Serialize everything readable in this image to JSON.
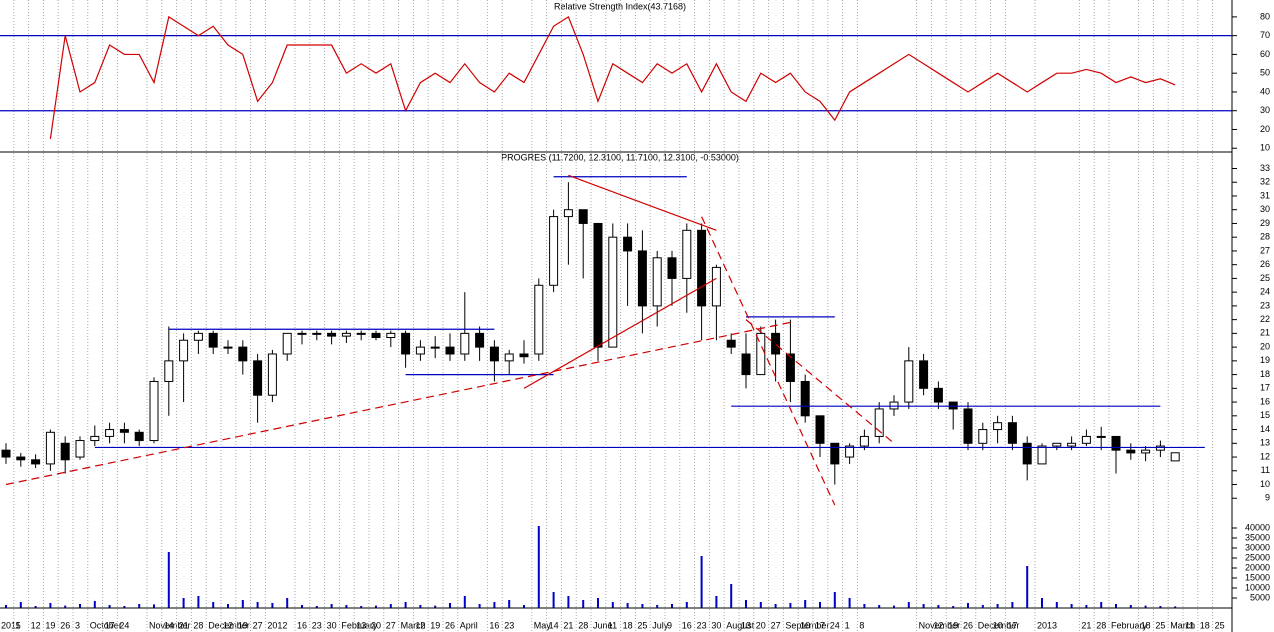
{
  "chart_data": [
    {
      "type": "line",
      "title": "Relative Strength Index(43.7168)",
      "color": "#d00000",
      "values": [
        null,
        null,
        null,
        15,
        70,
        40,
        45,
        65,
        60,
        60,
        45,
        80,
        75,
        70,
        75,
        65,
        60,
        35,
        45,
        65,
        65,
        65,
        65,
        50,
        55,
        50,
        55,
        30,
        45,
        50,
        45,
        55,
        45,
        40,
        50,
        45,
        60,
        75,
        80,
        60,
        35,
        55,
        50,
        45,
        55,
        50,
        55,
        40,
        55,
        40,
        35,
        50,
        45,
        50,
        40,
        35,
        25,
        40,
        45,
        50,
        55,
        60,
        55,
        50,
        45,
        40,
        45,
        50,
        45,
        40,
        45,
        50,
        50,
        52,
        50,
        45,
        48,
        45,
        47,
        43.7168,
        null,
        null,
        null
      ],
      "ylim": [
        8,
        89
      ],
      "yticks": [
        10,
        20,
        30,
        40,
        50,
        60,
        70,
        80
      ],
      "levels": [
        30,
        70
      ],
      "level_color": "#0000c0"
    },
    {
      "type": "candlestick",
      "title": "PROGRES (11.7200, 12.3100, 11.7100, 12.3100, -0.53000)",
      "up_color": "#ffffff",
      "down_color": "#000000",
      "open": [
        12.5,
        12,
        11.8,
        11.5,
        13,
        12,
        13.2,
        13.5,
        14,
        13.8,
        13.2,
        17.5,
        19,
        20.5,
        21,
        20,
        20,
        19,
        16.5,
        19.5,
        21,
        21,
        21,
        20.8,
        21,
        21,
        20.7,
        21,
        19.5,
        20,
        20,
        19.5,
        21,
        20,
        19,
        19.5,
        19.5,
        24.5,
        29.5,
        30,
        29,
        20,
        28,
        27,
        23,
        26.5,
        25,
        28.5,
        23,
        20.5,
        19.5,
        18,
        21,
        19.5,
        17.5,
        15,
        13,
        12,
        12.8,
        13.5,
        15.5,
        16,
        19,
        17,
        16,
        15.5,
        13,
        14,
        14.5,
        13,
        11.5,
        12.8,
        12.8,
        13,
        13.5,
        13.5,
        12.5,
        12.3,
        12.5,
        11.72,
        null,
        null,
        null
      ],
      "high": [
        13,
        12.3,
        12.2,
        14,
        13.5,
        13.5,
        14.3,
        14.5,
        14.5,
        14,
        17.8,
        21.5,
        21,
        21.2,
        21.2,
        20.5,
        20.5,
        19.5,
        19.8,
        21,
        21.2,
        21.2,
        21.2,
        21.2,
        21.2,
        21.2,
        21.2,
        21.2,
        20.5,
        20.8,
        21,
        24,
        21.5,
        20.5,
        19.8,
        20.5,
        25,
        30,
        32,
        30,
        29,
        29,
        29,
        28.5,
        27,
        27,
        29,
        29,
        26,
        21,
        21,
        21.5,
        22,
        22,
        18,
        15,
        13,
        13,
        14,
        16,
        16.5,
        20,
        19.5,
        17.5,
        16,
        16,
        14.5,
        15,
        15,
        13.5,
        13,
        13,
        13.5,
        14,
        14.2,
        13.5,
        13,
        12.8,
        13.2,
        12.31,
        null,
        null,
        null
      ],
      "low": [
        11.5,
        11.3,
        11.2,
        11,
        10.8,
        11.8,
        12.8,
        13,
        13,
        12.8,
        13,
        15,
        16,
        19.5,
        19.5,
        19.5,
        18,
        14.5,
        16,
        19,
        20.2,
        20.5,
        20.2,
        20.3,
        20.5,
        20.5,
        20,
        18.5,
        19,
        19.2,
        19,
        19,
        19,
        17.5,
        18,
        18.8,
        19,
        24,
        26,
        25,
        19,
        20,
        23,
        21,
        21.5,
        23,
        22.5,
        20.5,
        20.5,
        19.5,
        17,
        18,
        17.5,
        16,
        14.5,
        12,
        10,
        11.5,
        12.5,
        13,
        15,
        15.5,
        16.5,
        15.5,
        14,
        12.5,
        12.5,
        13,
        12.5,
        10.3,
        11.5,
        12.5,
        12.5,
        12.8,
        12.5,
        10.8,
        11.8,
        11.7,
        12,
        11.71,
        null,
        null,
        null
      ],
      "close": [
        12,
        11.8,
        11.5,
        13.8,
        11.8,
        13.2,
        13.5,
        14,
        13.8,
        13.2,
        17.5,
        19,
        20.5,
        21,
        20,
        20,
        19,
        16.5,
        19.5,
        21,
        21,
        21,
        20.8,
        21,
        21,
        20.7,
        21,
        19.5,
        20,
        20,
        19.5,
        21,
        20,
        19,
        19.5,
        19.3,
        24.5,
        29.5,
        30,
        29,
        20,
        28,
        27,
        23,
        26.5,
        25,
        28.5,
        23,
        25.8,
        20,
        18,
        21,
        19.5,
        17.5,
        15,
        13,
        11.5,
        12.8,
        13.5,
        15.5,
        16,
        19,
        17,
        16,
        15.5,
        13,
        14,
        14.5,
        13,
        11.5,
        12.8,
        13,
        13,
        13.5,
        13.5,
        12.5,
        12.3,
        12.5,
        12.8,
        12.31,
        null,
        null,
        null
      ],
      "ylim": [
        8,
        34.2
      ],
      "yticks": [
        9,
        10,
        11,
        12,
        13,
        14,
        15,
        16,
        17,
        18,
        19,
        20,
        21,
        22,
        23,
        24,
        25,
        26,
        27,
        28,
        29,
        30,
        31,
        32,
        33
      ],
      "lines": [
        {
          "from": [
            11,
            21.3
          ],
          "to": [
            33,
            21.3
          ],
          "color": "#0000c0",
          "dashed": false
        },
        {
          "from": [
            27,
            18
          ],
          "to": [
            37,
            18
          ],
          "color": "#0000c0",
          "dashed": false
        },
        {
          "from": [
            37,
            32.4
          ],
          "to": [
            46,
            32.4
          ],
          "color": "#0000c0",
          "dashed": false
        },
        {
          "from": [
            50,
            22.2
          ],
          "to": [
            56,
            22.2
          ],
          "color": "#0000c0",
          "dashed": false
        },
        {
          "from": [
            49,
            15.7
          ],
          "to": [
            78,
            15.7
          ],
          "color": "#0000c0",
          "dashed": false
        },
        {
          "from": [
            6,
            12.7
          ],
          "to": [
            81,
            12.7
          ],
          "color": "#0000c0",
          "dashed": false
        },
        {
          "from": [
            38,
            32.5
          ],
          "to": [
            48,
            28.5
          ],
          "color": "#d00000",
          "dashed": false
        },
        {
          "from": [
            35,
            17
          ],
          "to": [
            48,
            25
          ],
          "color": "#d00000",
          "dashed": false
        },
        {
          "from": [
            0,
            10
          ],
          "to": [
            53,
            21.8
          ],
          "color": "#d00000",
          "dashed": true
        },
        {
          "from": [
            47,
            29.5
          ],
          "to": [
            56,
            8.5
          ],
          "color": "#d00000",
          "dashed": true
        },
        {
          "from": [
            50,
            22
          ],
          "to": [
            60,
            13
          ],
          "color": "#d00000",
          "dashed": true
        }
      ]
    },
    {
      "type": "bar",
      "color": "#0000cc",
      "categories": [
        "2011",
        "5",
        "12",
        "19",
        "26",
        "3",
        "October",
        "17",
        "24",
        null,
        "November",
        "14",
        "21",
        "28",
        "December",
        "12",
        "19",
        "27",
        "2012",
        null,
        "16",
        "23",
        "30",
        "February",
        "13",
        "20",
        "27",
        "March",
        "12",
        "19",
        "26",
        "April",
        null,
        "16",
        "23",
        null,
        "May",
        "14",
        "21",
        "28",
        "June",
        "11",
        "18",
        "25",
        "July",
        "9",
        "16",
        "23",
        "30",
        "August",
        "13",
        "20",
        "27",
        "September",
        "10",
        "17",
        "24",
        "1",
        "8",
        null,
        null,
        null,
        "November",
        "12",
        "19",
        "26",
        "December",
        "10",
        "17",
        null,
        "2013",
        null,
        null,
        "21",
        "28",
        "February",
        null,
        "18",
        "25",
        "March",
        "11",
        "18",
        "25"
      ],
      "values": [
        1500,
        3000,
        1000,
        2500,
        1200,
        2000,
        3500,
        1500,
        1000,
        2000,
        1800,
        28000,
        5000,
        6000,
        3000,
        2000,
        4000,
        3000,
        2500,
        5000,
        1500,
        1000,
        2000,
        1500,
        1000,
        1200,
        2000,
        3000,
        1500,
        1200,
        2500,
        6000,
        2000,
        3000,
        4000,
        1500,
        41000,
        8000,
        6000,
        4000,
        5000,
        3000,
        2500,
        2000,
        1500,
        2000,
        3000,
        26000,
        6000,
        12000,
        4000,
        3000,
        2000,
        2500,
        4000,
        3000,
        8000,
        5000,
        2000,
        1500,
        1200,
        3000,
        2000,
        1500,
        1000,
        2500,
        1500,
        2000,
        3000,
        21000,
        5000,
        3000,
        2000,
        1500,
        3000,
        2000,
        1500,
        1200,
        1000,
        800,
        null,
        null,
        null
      ],
      "ylim": [
        0,
        48000
      ],
      "yticks": [
        5000,
        10000,
        15000,
        20000,
        25000,
        30000,
        35000,
        40000
      ],
      "grid": true
    }
  ]
}
